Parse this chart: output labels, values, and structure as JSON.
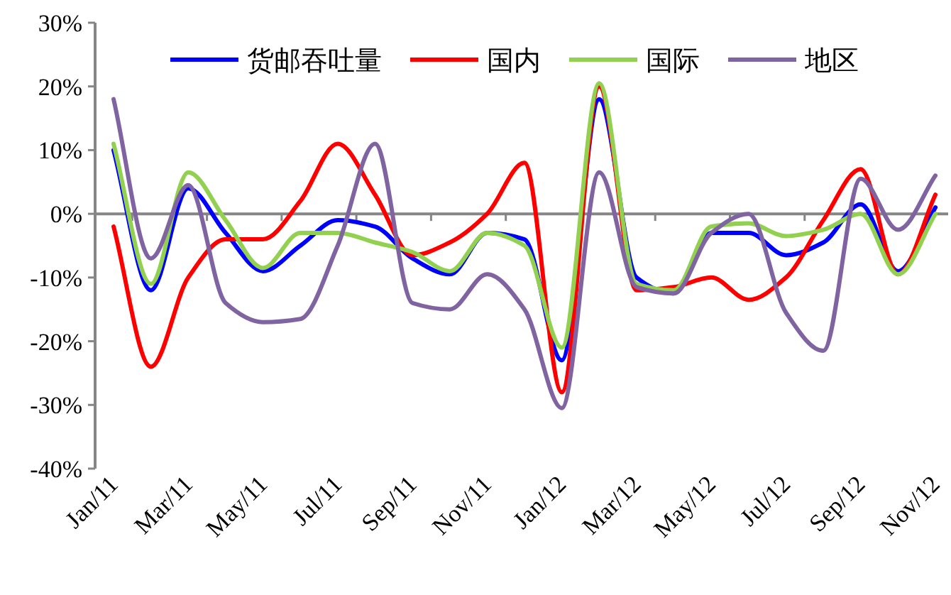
{
  "chart_data": {
    "type": "line",
    "categories": [
      "Jan/11",
      null,
      "Mar/11",
      null,
      "May/11",
      null,
      "Jul/11",
      null,
      "Sep/11",
      null,
      "Nov/11",
      null,
      "Jan/12",
      null,
      "Mar/12",
      null,
      "May/12",
      null,
      "Jul/12",
      null,
      "Sep/12",
      null,
      "Nov/12"
    ],
    "series": [
      {
        "name": "货邮吞吐量",
        "color": "#0000ff",
        "values": [
          10,
          -12,
          4,
          -3,
          -9,
          -5,
          -1,
          -2,
          -7,
          -9.5,
          -3,
          -4,
          -23,
          18,
          -10,
          -12.5,
          -3,
          -3,
          -6.5,
          -4.5,
          1.5,
          -9,
          1
        ]
      },
      {
        "name": "国内",
        "color": "#ff0000",
        "values": [
          -2,
          -24,
          -10,
          -4,
          -4,
          2,
          11,
          3,
          -6.5,
          -4.5,
          0,
          8,
          -28,
          20,
          -12,
          -11.5,
          -10,
          -13.5,
          -10,
          -1,
          7,
          -9.5,
          3
        ]
      },
      {
        "name": "国际",
        "color": "#92d050",
        "values": [
          11,
          -11,
          6.5,
          -1,
          -8.5,
          -3,
          -3,
          -4.5,
          -6,
          -9,
          -3,
          -5,
          -21,
          20.5,
          -11,
          -12,
          -2,
          -1.5,
          -3.5,
          -2.5,
          0,
          -9.5,
          0
        ]
      },
      {
        "name": "地区",
        "color": "#8064a2",
        "values": [
          18,
          -7,
          4.5,
          -14,
          -17,
          -16.5,
          -5,
          11,
          -14,
          -15,
          -9.5,
          -15,
          -30.5,
          6.5,
          -11.5,
          -12.5,
          -3,
          0,
          -15.5,
          -21.5,
          5.5,
          -2.5,
          6
        ]
      }
    ],
    "ylim": [
      -40,
      30
    ],
    "yticks": [
      {
        "value": -40,
        "label": "-40%"
      },
      {
        "value": -30,
        "label": "-30%"
      },
      {
        "value": -20,
        "label": "-20%"
      },
      {
        "value": -10,
        "label": "-10%"
      },
      {
        "value": 0,
        "label": "0%"
      },
      {
        "value": 10,
        "label": "10%"
      },
      {
        "value": 20,
        "label": "20%"
      },
      {
        "value": 30,
        "label": "30%"
      }
    ],
    "legend": "top",
    "marker": "none",
    "line_style": "solid"
  }
}
